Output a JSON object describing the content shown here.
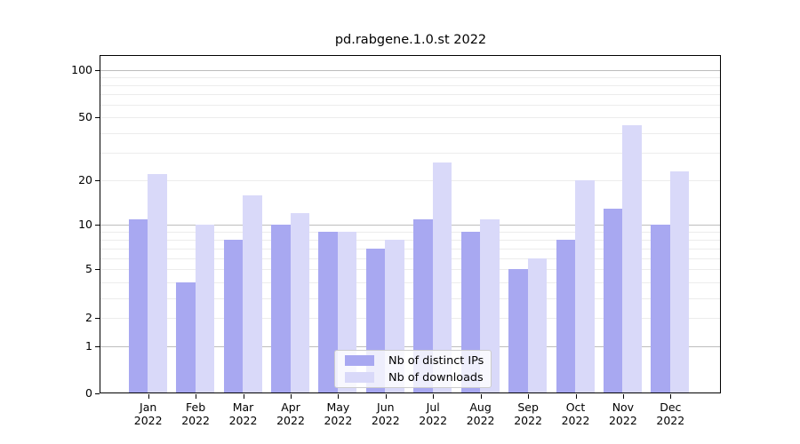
{
  "title": "pd.rabgene.1.0.st 2022",
  "legend": {
    "items": [
      {
        "label": "Nb of distinct IPs",
        "series": "ips"
      },
      {
        "label": "Nb of downloads",
        "series": "downloads"
      }
    ]
  },
  "y_axis": {
    "tick_labels": [
      "100",
      "50",
      "20",
      "10",
      "5",
      "2",
      "1",
      "0"
    ],
    "tick_values": [
      100,
      50,
      20,
      10,
      5,
      2,
      1,
      0
    ],
    "minor_gridline_values": [
      2,
      3,
      4,
      5,
      6,
      7,
      8,
      9,
      20,
      30,
      40,
      50,
      60,
      70,
      80,
      90
    ],
    "decade_gridline_values": [
      1,
      10,
      100
    ]
  },
  "x_axis": {
    "months": [
      "Jan",
      "Feb",
      "Mar",
      "Apr",
      "May",
      "Jun",
      "Jul",
      "Aug",
      "Sep",
      "Oct",
      "Nov",
      "Dec"
    ],
    "year": "2022"
  },
  "colors": {
    "ips": "#a8a8f1",
    "downloads": "#d9d9f9",
    "minor_grid": "#ececec",
    "decade_grid": "#bdbdbd",
    "axis": "#000000",
    "legend_border": "#cccccc"
  },
  "chart_data": {
    "type": "bar",
    "title": "pd.rabgene.1.0.st 2022",
    "categories": [
      "Jan 2022",
      "Feb 2022",
      "Mar 2022",
      "Apr 2022",
      "May 2022",
      "Jun 2022",
      "Jul 2022",
      "Aug 2022",
      "Sep 2022",
      "Oct 2022",
      "Nov 2022",
      "Dec 2022"
    ],
    "series": [
      {
        "name": "Nb of distinct IPs",
        "values": [
          11,
          4,
          8,
          10,
          9,
          7,
          11,
          9,
          5,
          8,
          13,
          10
        ],
        "color": "#a8a8f1"
      },
      {
        "name": "Nb of downloads",
        "values": [
          22,
          10,
          16,
          12,
          9,
          8,
          26,
          11,
          6,
          20,
          45,
          23
        ],
        "color": "#d9d9f9"
      }
    ],
    "yscale": "log1p",
    "ylim": [
      0,
      100
    ],
    "yticks": [
      0,
      1,
      2,
      5,
      10,
      20,
      50,
      100
    ],
    "grid": true,
    "legend_position": "lower center"
  }
}
